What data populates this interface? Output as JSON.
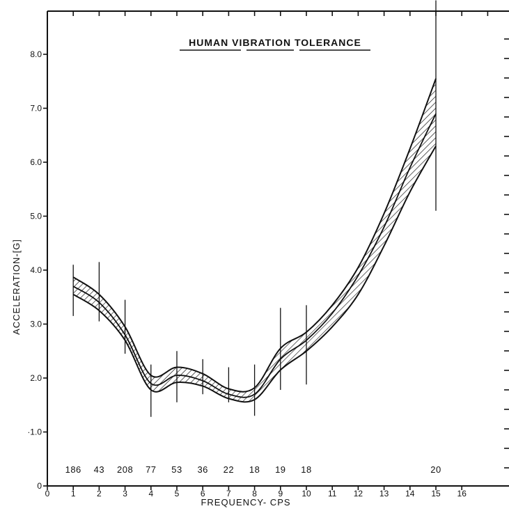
{
  "chart_data": {
    "type": "line",
    "title": "HUMAN VIBRATION TOLERANCE",
    "xlabel": "FREQUENCY- CPS",
    "ylabel": "ACCELERATION-[G]",
    "xlim": [
      0,
      18
    ],
    "ylim": [
      0,
      9
    ],
    "x_ticks": [
      0,
      1,
      2,
      3,
      4,
      5,
      6,
      7,
      8,
      9,
      10,
      11,
      12,
      13,
      14,
      15,
      16
    ],
    "x_tick_labels": [
      "0",
      "1",
      "2",
      "3",
      "4",
      "5",
      "6",
      "7",
      "8",
      "9",
      "10",
      "11",
      "12",
      "13",
      "14",
      "15",
      "16"
    ],
    "y_ticks": [
      0,
      1,
      2,
      3,
      4,
      5,
      6,
      7,
      8
    ],
    "y_tick_labels": [
      "0",
      "·1.0",
      "2.0",
      "3.0",
      "4.0",
      "5.0",
      "6.0",
      "7.0",
      "8.0"
    ],
    "grid": false,
    "series": [
      {
        "x": [
          1,
          2,
          3,
          4,
          5,
          6,
          7,
          8,
          9,
          10,
          11,
          12,
          13,
          14,
          15
        ],
        "mean": [
          3.7,
          3.4,
          2.8,
          1.9,
          2.05,
          1.95,
          1.7,
          1.7,
          2.35,
          2.7,
          3.2,
          3.9,
          4.8,
          5.9,
          6.9
        ],
        "upper": [
          3.87,
          3.55,
          2.95,
          2.05,
          2.2,
          2.08,
          1.8,
          1.82,
          2.55,
          2.85,
          3.35,
          4.05,
          5.05,
          6.25,
          7.55
        ],
        "lower": [
          3.55,
          3.25,
          2.7,
          1.78,
          1.92,
          1.85,
          1.62,
          1.6,
          2.15,
          2.5,
          2.95,
          3.55,
          4.45,
          5.45,
          6.3
        ],
        "err_high": [
          4.1,
          4.15,
          3.45,
          2.25,
          2.5,
          2.35,
          2.2,
          2.25,
          3.3,
          3.35,
          null,
          null,
          null,
          null,
          9.0
        ],
        "err_low": [
          3.15,
          3.05,
          2.45,
          1.28,
          1.55,
          1.7,
          1.55,
          1.3,
          1.78,
          1.88,
          null,
          null,
          null,
          null,
          5.1
        ]
      }
    ],
    "annotations": {
      "y_position": 0.3,
      "points": [
        {
          "x": 1,
          "text": "186"
        },
        {
          "x": 2,
          "text": "43"
        },
        {
          "x": 3,
          "text": "208"
        },
        {
          "x": 4,
          "text": "77"
        },
        {
          "x": 5,
          "text": "53"
        },
        {
          "x": 6,
          "text": "36"
        },
        {
          "x": 7,
          "text": "22"
        },
        {
          "x": 8,
          "text": "18"
        },
        {
          "x": 9,
          "text": "19"
        },
        {
          "x": 10,
          "text": "18"
        },
        {
          "x": 15,
          "text": "20"
        }
      ]
    }
  }
}
